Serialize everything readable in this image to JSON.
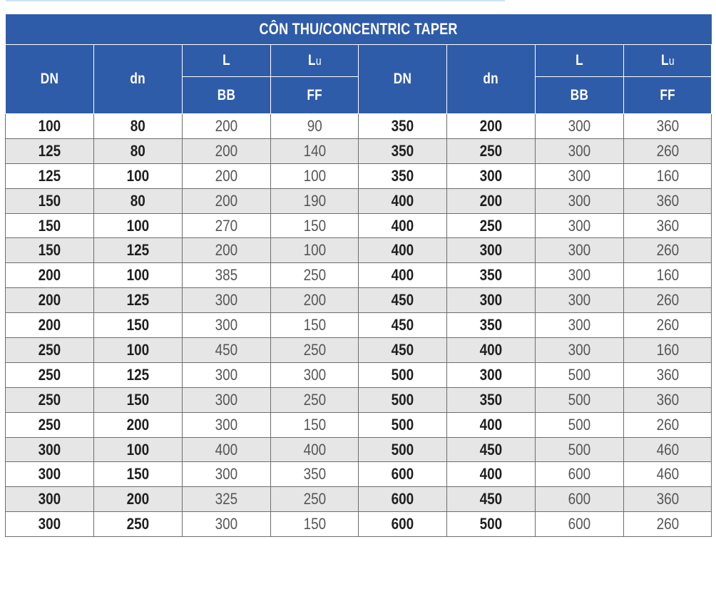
{
  "title": "CÔN THU/CONCENTRIC TAPER",
  "headers": {
    "dn_upper": "DN",
    "dn_lower": "dn",
    "l_main": "L",
    "lu_main": "L",
    "lu_sub": "u",
    "bb": "BB",
    "ff": "FF"
  },
  "rows": [
    [
      "100",
      "80",
      "200",
      "90",
      "350",
      "200",
      "300",
      "360"
    ],
    [
      "125",
      "80",
      "200",
      "140",
      "350",
      "250",
      "300",
      "260"
    ],
    [
      "125",
      "100",
      "200",
      "100",
      "350",
      "300",
      "300",
      "160"
    ],
    [
      "150",
      "80",
      "200",
      "190",
      "400",
      "200",
      "300",
      "360"
    ],
    [
      "150",
      "100",
      "270",
      "150",
      "400",
      "250",
      "300",
      "360"
    ],
    [
      "150",
      "125",
      "200",
      "100",
      "400",
      "300",
      "300",
      "260"
    ],
    [
      "200",
      "100",
      "385",
      "250",
      "400",
      "350",
      "300",
      "160"
    ],
    [
      "200",
      "125",
      "300",
      "200",
      "450",
      "300",
      "300",
      "260"
    ],
    [
      "200",
      "150",
      "300",
      "150",
      "450",
      "350",
      "300",
      "260"
    ],
    [
      "250",
      "100",
      "450",
      "250",
      "450",
      "400",
      "300",
      "160"
    ],
    [
      "250",
      "125",
      "300",
      "300",
      "500",
      "300",
      "500",
      "360"
    ],
    [
      "250",
      "150",
      "300",
      "250",
      "500",
      "350",
      "500",
      "360"
    ],
    [
      "250",
      "200",
      "300",
      "150",
      "500",
      "400",
      "500",
      "260"
    ],
    [
      "300",
      "100",
      "400",
      "400",
      "500",
      "450",
      "500",
      "460"
    ],
    [
      "300",
      "150",
      "300",
      "350",
      "600",
      "400",
      "600",
      "460"
    ],
    [
      "300",
      "200",
      "325",
      "250",
      "600",
      "450",
      "600",
      "360"
    ],
    [
      "300",
      "250",
      "300",
      "150",
      "600",
      "500",
      "600",
      "260"
    ]
  ],
  "colors": {
    "header_bg": "#2f5ca8",
    "alt_row_bg": "#e6e6e6",
    "grid": "#6d6d6d"
  }
}
